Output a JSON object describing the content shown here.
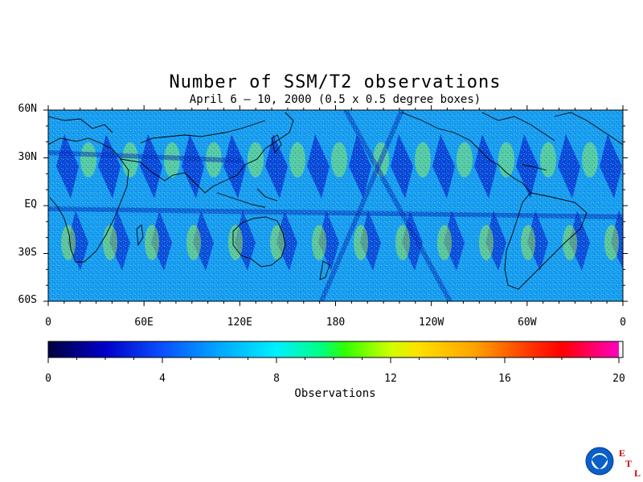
{
  "map": {
    "title": "Number of SSM/T2 observations",
    "subtitle": "April 6 – 10, 2000 (0.5 x 0.5 degree boxes)",
    "lat_labels": [
      "60N",
      "30N",
      "EQ",
      "30S",
      "60S"
    ],
    "lat_values": [
      60,
      30,
      0,
      -30,
      -60
    ],
    "lon_labels": [
      "0",
      "60E",
      "120E",
      "180",
      "120W",
      "60W",
      "0"
    ],
    "lon_values": [
      0,
      60,
      120,
      180,
      240,
      300,
      360
    ],
    "lat_range": [
      -60,
      60
    ],
    "lon_range": [
      0,
      360
    ]
  },
  "colorbar": {
    "label": "Observations",
    "ticks": [
      "0",
      "4",
      "8",
      "12",
      "16",
      "20"
    ],
    "tick_values": [
      0,
      4,
      8,
      12,
      16,
      20
    ],
    "range": [
      0,
      20
    ],
    "colors": [
      "#000040",
      "#0000c8",
      "#0a50ff",
      "#00a8ff",
      "#00e8ff",
      "#00ff80",
      "#40ff00",
      "#c8ff00",
      "#ffe000",
      "#ffa000",
      "#ff5000",
      "#ff0000",
      "#ff0090",
      "#ff00ff"
    ]
  },
  "logo": {
    "noaa": "NOAA",
    "etl_letters": [
      "E",
      "T",
      "L"
    ]
  }
}
